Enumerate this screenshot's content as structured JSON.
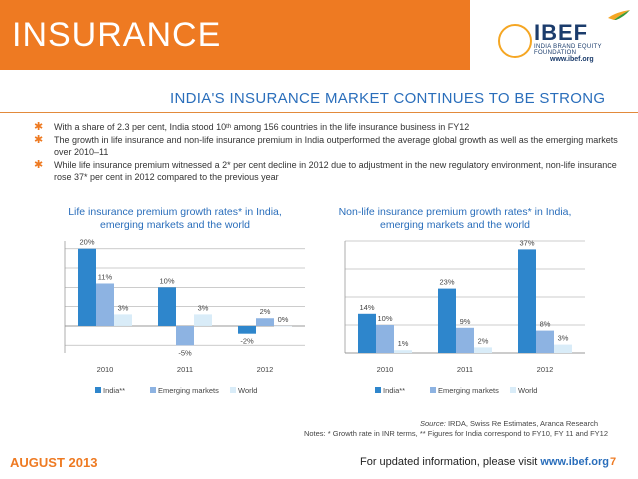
{
  "header": {
    "title": "INSURANCE",
    "logo_text": "IBEF",
    "logo_subtitle": "INDIA BRAND EQUITY FOUNDATION",
    "logo_url": "www.ibef.org"
  },
  "slide_heading": "INDIA'S INSURANCE MARKET CONTINUES TO BE STRONG",
  "bullets": [
    {
      "pre": "With a share of 2.3 per cent, India stood 10",
      "sup": "th",
      "post": " among 156 countries in the life insurance business in FY12"
    },
    {
      "pre": "The growth in life insurance and non-life insurance premium in India outperformed the average global growth as well as the emerging markets over 2010–11",
      "sup": "",
      "post": ""
    },
    {
      "pre": "While life insurance premium witnessed a 2* per cent decline in 2012 due to adjustment in the new regulatory environment, non-life insurance rose 37* per cent in 2012 compared to the previous year",
      "sup": "",
      "post": ""
    }
  ],
  "colors": {
    "india": "#2e86cc",
    "emerging": "#8db3e2",
    "world": "#d9ecf8",
    "accent": "#ee7a22",
    "heading": "#2a6ebb"
  },
  "chart_data": [
    {
      "type": "bar",
      "title": "Life insurance premium growth rates* in India, emerging markets and the world",
      "categories": [
        "2010",
        "2011",
        "2012"
      ],
      "series": [
        {
          "name": "India**",
          "values": [
            20,
            10,
            -2
          ]
        },
        {
          "name": "Emerging markets",
          "values": [
            11,
            -5,
            2
          ]
        },
        {
          "name": "World",
          "values": [
            3,
            3,
            0
          ]
        }
      ],
      "value_labels": [
        [
          "20%",
          "10%",
          "-2%"
        ],
        [
          "11%",
          "-5%",
          "2%"
        ],
        [
          "3%",
          "3%",
          "0%"
        ]
      ],
      "ylim": [
        -7,
        22
      ],
      "grid": true,
      "legend": "bottom"
    },
    {
      "type": "bar",
      "title": "Non-life insurance premium growth rates* in India, emerging markets and the world",
      "categories": [
        "2010",
        "2011",
        "2012"
      ],
      "series": [
        {
          "name": "India**",
          "values": [
            14,
            23,
            37
          ]
        },
        {
          "name": "Emerging markets",
          "values": [
            10,
            9,
            8
          ]
        },
        {
          "name": "World",
          "values": [
            1,
            2,
            3
          ]
        }
      ],
      "value_labels": [
        [
          "14%",
          "23%",
          "37%"
        ],
        [
          "10%",
          "9%",
          "8%"
        ],
        [
          "1%",
          "2%",
          "3%"
        ]
      ],
      "ylim": [
        0,
        40
      ],
      "grid": true,
      "legend": "bottom"
    }
  ],
  "source": {
    "label": "Source:",
    "text": " IRDA, Swiss Re Estimates, Aranca Research"
  },
  "notes": "Notes: * Growth rate in INR terms, ** Figures for India correspond to FY10, FY 11 and FY12",
  "footer": {
    "date": "AUGUST 2013",
    "text": "For updated information, please visit ",
    "link": "www.ibef.org",
    "page": "7"
  }
}
